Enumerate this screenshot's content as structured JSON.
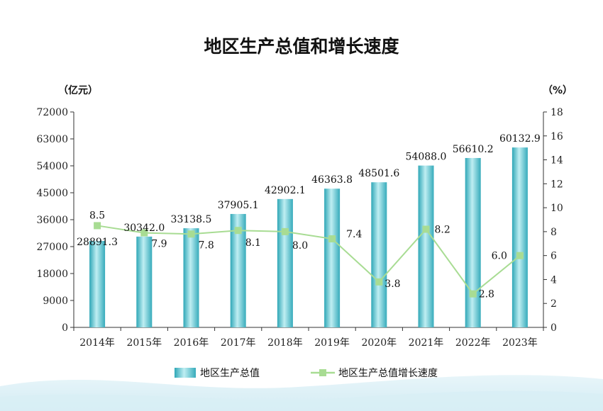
{
  "chart_data": {
    "type": "bar+line",
    "title": "地区生产总值和增长速度",
    "y_left_unit": "（亿元）",
    "y_right_unit": "（%）",
    "categories": [
      "2014年",
      "2015年",
      "2016年",
      "2017年",
      "2018年",
      "2019年",
      "2020年",
      "2021年",
      "2022年",
      "2023年"
    ],
    "series": [
      {
        "name": "地区生产总值",
        "type": "bar",
        "axis": "left",
        "values": [
          28891.3,
          30342.0,
          33138.5,
          37905.1,
          42902.1,
          46363.8,
          48501.6,
          54088.0,
          56610.2,
          60132.9
        ],
        "labels": [
          "28891.3",
          "30342.0",
          "33138.5",
          "37905.1",
          "42902.1",
          "46363.8",
          "48501.6",
          "54088.0",
          "56610.2",
          "60132.9"
        ],
        "color": "#45b8c6"
      },
      {
        "name": "地区生产总值增长速度",
        "type": "line",
        "axis": "right",
        "values": [
          8.5,
          7.9,
          7.8,
          8.1,
          8.0,
          7.4,
          3.8,
          8.2,
          2.8,
          6.0
        ],
        "labels": [
          "8.5",
          "7.9",
          "7.8",
          "8.1",
          "8.0",
          "7.4",
          "3.8",
          "8.2",
          "2.8",
          "6.0"
        ],
        "color": "#a8dc93"
      }
    ],
    "y_left_ticks": [
      "0",
      "9000",
      "18000",
      "27000",
      "36000",
      "45000",
      "54000",
      "63000",
      "72000"
    ],
    "y_left_range": [
      0,
      72000
    ],
    "y_right_ticks": [
      "0",
      "2",
      "4",
      "6",
      "8",
      "10",
      "12",
      "14",
      "16",
      "18"
    ],
    "y_right_range": [
      0,
      18
    ],
    "grid": false,
    "legend_position": "bottom"
  }
}
